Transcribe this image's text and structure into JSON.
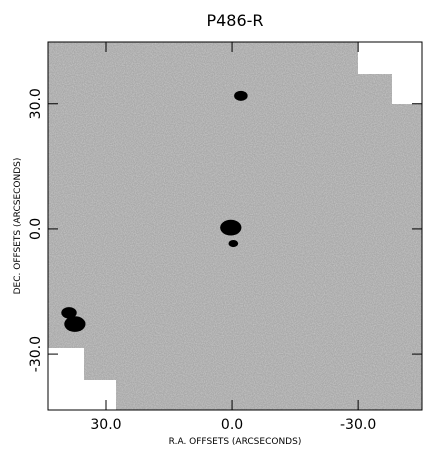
{
  "chart_data": {
    "type": "image",
    "title": "P486-R",
    "x_label": "R.A. OFFSETS (ARCSECONDS)",
    "y_label": "DEC. OFFSETS (ARCSECONDS)",
    "xlim": [
      43.8,
      -45.2
    ],
    "ylim": [
      -43.4,
      44.8
    ],
    "xticks": [
      {
        "value": 30,
        "label": "30.0"
      },
      {
        "value": 0,
        "label": "0.0"
      },
      {
        "value": -30,
        "label": "-30.0"
      }
    ],
    "yticks": [
      {
        "value": -30,
        "label": "-30.0"
      },
      {
        "value": 0,
        "label": "0.0"
      },
      {
        "value": 30,
        "label": "30.0"
      }
    ],
    "sources": {
      "x": [
        -2.1,
        0.3,
        -0.3,
        38.8,
        37.4
      ],
      "y": [
        31.9,
        0.3,
        -3.5,
        -20.1,
        -22.8
      ],
      "radius": [
        1.4,
        2.2,
        1.0,
        1.6,
        2.2
      ]
    },
    "color": "#000000"
  }
}
